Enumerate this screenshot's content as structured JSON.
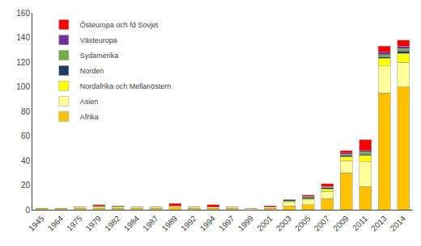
{
  "chart_data": {
    "type": "bar",
    "stacked": true,
    "categories": [
      "1945",
      "1964",
      "1975",
      "1979",
      "1982",
      "1984",
      "1987",
      "1989",
      "1992",
      "1994",
      "1997",
      "1999",
      "2001",
      "2003",
      "2005",
      "2007",
      "2009",
      "2011",
      "2013",
      "2014"
    ],
    "series": [
      {
        "name": "Afrika",
        "color": "#FFC000",
        "values": [
          1,
          1,
          1,
          1,
          1,
          1,
          1,
          2,
          1,
          1,
          1,
          0,
          1,
          3,
          4,
          9,
          30,
          19,
          95,
          100
        ]
      },
      {
        "name": "Asien",
        "color": "#FFFF99",
        "values": [
          0,
          0,
          1,
          1,
          1,
          1,
          1,
          1,
          1,
          1,
          1,
          1,
          1,
          3,
          4,
          6,
          10,
          20,
          22,
          20
        ]
      },
      {
        "name": "Nordafrika och Mellanöstern",
        "color": "#FFFF00",
        "values": [
          0,
          0,
          0,
          0,
          0,
          0,
          0,
          0,
          0,
          0,
          0,
          0,
          0,
          1,
          1,
          2,
          3,
          5,
          6,
          7
        ]
      },
      {
        "name": "Norden",
        "color": "#1F3864",
        "values": [
          0,
          0,
          0,
          0,
          0,
          0,
          0,
          0,
          0,
          0,
          0,
          0,
          0,
          1,
          1,
          1,
          1,
          1,
          1,
          2
        ]
      },
      {
        "name": "Sydamerika",
        "color": "#70AD47",
        "values": [
          0,
          0,
          0,
          1,
          1,
          0,
          0,
          0,
          0,
          0,
          0,
          0,
          0,
          0,
          1,
          1,
          1,
          2,
          2,
          2
        ]
      },
      {
        "name": "Västeuropa",
        "color": "#7030A0",
        "values": [
          0,
          0,
          0,
          0,
          0,
          0,
          0,
          0,
          0,
          0,
          0,
          0,
          0,
          0,
          0,
          0,
          1,
          1,
          2,
          2
        ]
      },
      {
        "name": "Östeuropa och fd Sovjet",
        "color": "#FF0000",
        "values": [
          0,
          0,
          0,
          1,
          0,
          0,
          0,
          2,
          0,
          2,
          0,
          0,
          1,
          0,
          1,
          2,
          2,
          9,
          5,
          5
        ]
      }
    ],
    "ylim": [
      0,
      160
    ],
    "yticks": [
      0,
      20,
      40,
      60,
      80,
      100,
      120,
      140,
      160
    ],
    "legend": "upper left",
    "grid": false
  }
}
